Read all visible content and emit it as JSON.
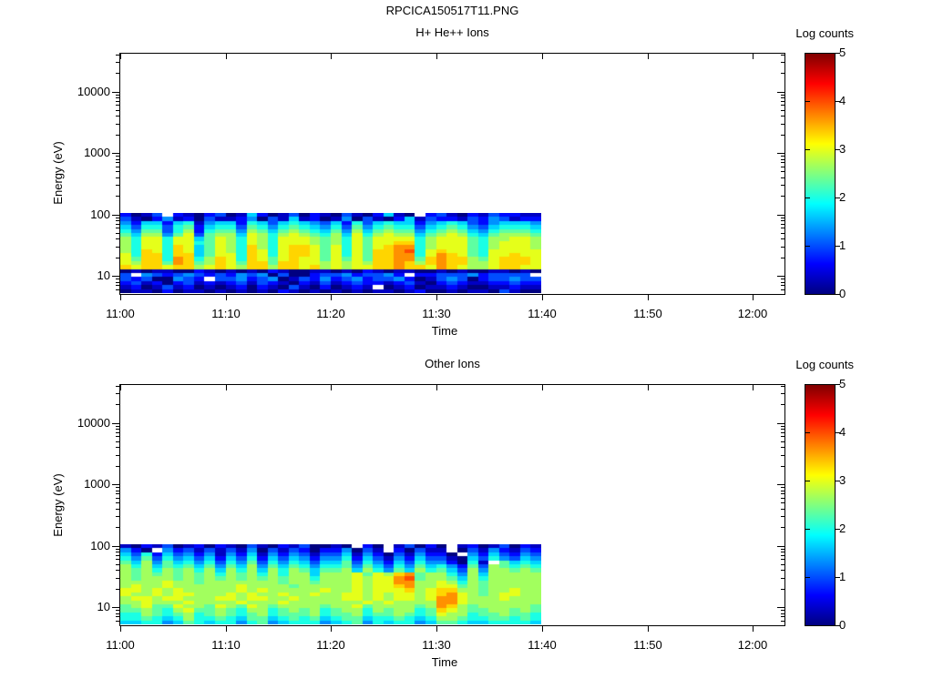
{
  "suptitle": "RPCICA150517T11.PNG",
  "chart_data": [
    {
      "type": "heatmap",
      "title": "H+ He++ Ions",
      "xlabel": "Time",
      "ylabel": "Energy (eV)",
      "colorbar_label": "Log counts",
      "colormap": "jet",
      "colorbar_range": [
        0,
        5
      ],
      "colorbar_tick_labels": [
        "0",
        "1",
        "2",
        "3",
        "4",
        "5"
      ],
      "xtick_labels": [
        "11:00",
        "11:10",
        "11:20",
        "11:30",
        "11:40",
        "11:50",
        "12:00"
      ],
      "ytick_labels": [
        "10",
        "100",
        "1000",
        "10000"
      ],
      "yticks_ev": [
        10,
        100,
        1000,
        10000
      ],
      "yscale": "log",
      "ylim_ev": [
        5,
        42000
      ],
      "xlim": [
        "11:00",
        "12:02"
      ],
      "grid_info": {
        "time_start": "11:00",
        "time_end": "11:40",
        "time_bin_minutes": 1,
        "energy_top_ev": 105,
        "energy_bottom_ev": 5,
        "rows_order": "top_to_bottom",
        "value_encoding": "hex digit d (0-15) -> log10(counts) = d/3 ; '.' = no data (white)"
      },
      "grid": [
        "2013.21023015201302103102510.23102132211",
        "3102412031124031512014031025132213243122",
        "4255256145526535654352635655245653245554",
        "5366367256637646765463746766356764356665",
        "6477368267748757876574857877467875467776",
        "7588479378859868987685968988578986578887",
        "8699699579869869998786979999689997688998",
        "86996996798698699987869799aa689997689998",
        "86996a957986a869aa9796979abb689997689998",
        "86a96a957986a969aa979697aabc69a997699999",
        "96aa6aa57996a969aa979697aabb69ba97699a99",
        "97aa6ba68a96a979a9979797aabb7abaa879aaa9",
        "98aa7ba78a97aa7aa9989898aaba8abaa889aaa9",
        "a9aa9aa89a98aa8aa9a89899aabaa9ba9889aa99",
        "0101100210101021001101021011001010011010",
        "3.4323432324340300233423342 .22333423333",
        "32300432.33423401324234233420 13430233433",
        "2312023121231321021312322123102321122322",
        "120131201012021031020121.012011210011211",
        "0110201101010102101010101101200101103100"
      ]
    },
    {
      "type": "heatmap",
      "title": "Other Ions",
      "xlabel": "Time",
      "ylabel": "Energy (eV)",
      "colorbar_label": "Log counts",
      "colormap": "jet",
      "colorbar_range": [
        0,
        5
      ],
      "colorbar_tick_labels": [
        "0",
        "1",
        "2",
        "3",
        "4",
        "5"
      ],
      "xtick_labels": [
        "11:00",
        "11:10",
        "11:20",
        "11:30",
        "11:40",
        "11:50",
        "12:00"
      ],
      "ytick_labels": [
        "10",
        "100",
        "1000",
        "10000"
      ],
      "yticks_ev": [
        10,
        100,
        1000,
        10000
      ],
      "yscale": "log",
      "ylim_ev": [
        5,
        42000
      ],
      "xlim": [
        "11:00",
        "12:02"
      ],
      "grid_info": {
        "time_start": "11:00",
        "time_end": "11:40",
        "time_bin_minutes": 1,
        "energy_top_ev": 105,
        "energy_bottom_ev": 5,
        "rows_order": "top_to_bottom",
        "value_encoding": "hex digit d (0-15) -> log10(counts) = d/3 ; '.' = no data (white)"
      },
      "grid": [
        "102130120210310213001 0.20.13020.12013021",
        "420.4231313140313202240 31.20311.03142132",
        "536253424142514243133514203142 20.4253243",
        "6473645352536253542446253142533105364354",
        "7584756463647364653557364253644 2061.7565",
        "8685767574758475764667475364756427387676",
        "8786878685868586875778586475867538488787",
        "87878787868786868858889798ab788648588888",
        "87888787878787878868889899bc788758688888",
        "88889887888888878878889899bb889868788888",
        "89889888888988887888889899ab889978788888",
        "998989888889898888898898999a89aa88788988",
        "98898998889898898898899898 9989ab98789988",
        "89989988899899889888899898 9989bb98889888",
        "8898889888898889888888898988 88bb98888888",
        "7897798879879878888788978888 78ba87888887",
        "77876897787688678786788687 8867a987788787",
        "6687678678767867778677867787679886778776",
        "6676568667657756767567756676568876677676",
        "5566457656646745666456746566457765566665"
      ]
    }
  ]
}
